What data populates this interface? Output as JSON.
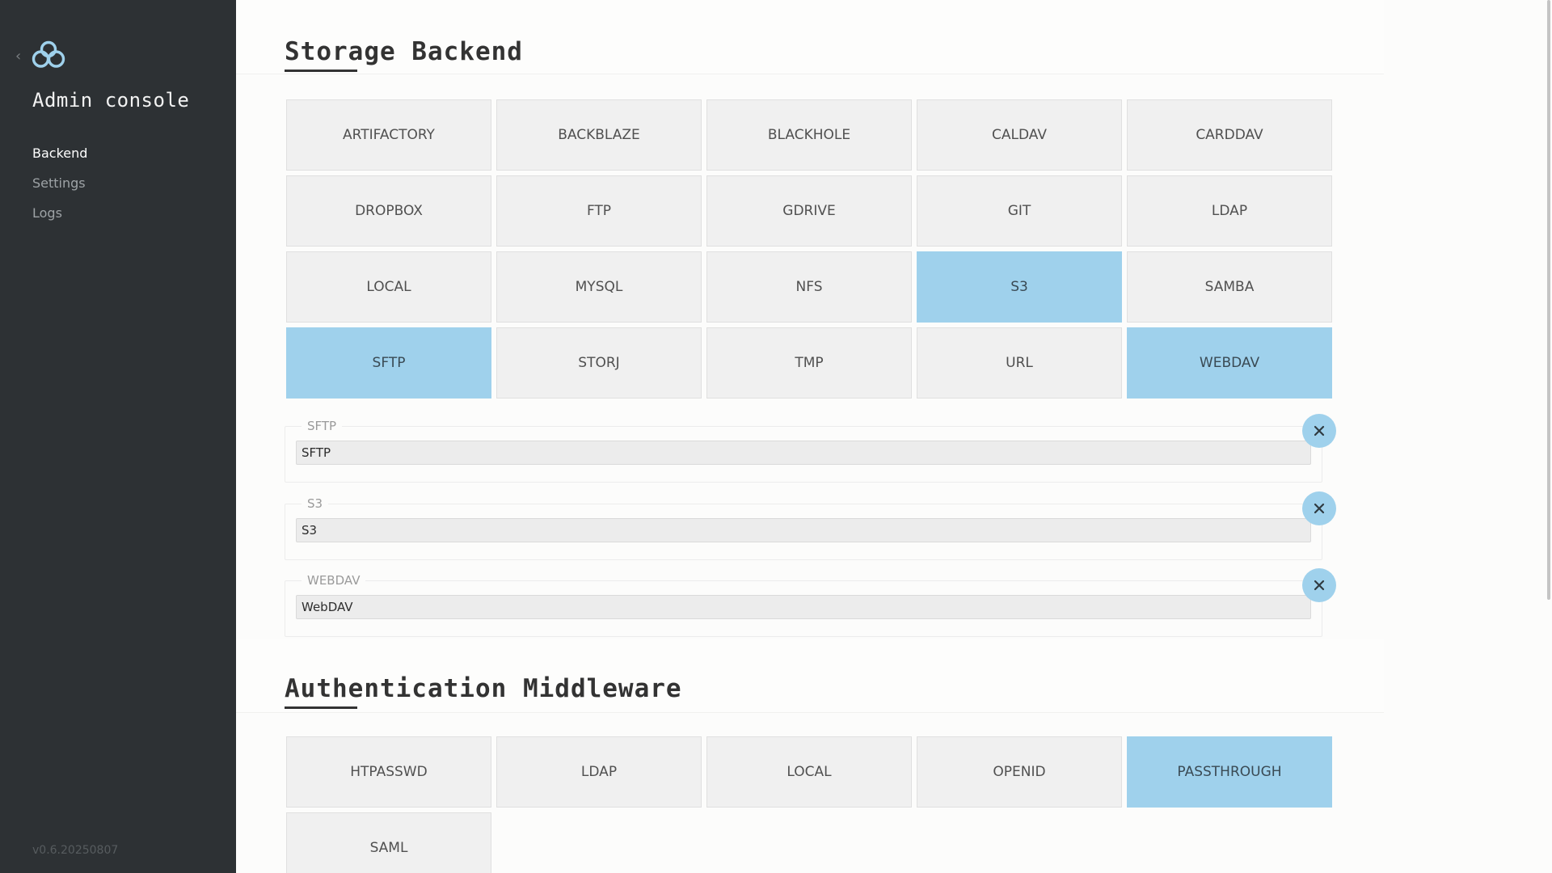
{
  "sidebar": {
    "title": "Admin console",
    "nav": [
      {
        "label": "Backend",
        "active": true
      },
      {
        "label": "Settings",
        "active": false
      },
      {
        "label": "Logs",
        "active": false
      }
    ],
    "version": "v0.6.20250807"
  },
  "storage": {
    "title": "Storage Backend",
    "tiles": [
      {
        "label": "ARTIFACTORY",
        "selected": false
      },
      {
        "label": "BACKBLAZE",
        "selected": false
      },
      {
        "label": "BLACKHOLE",
        "selected": false
      },
      {
        "label": "CALDAV",
        "selected": false
      },
      {
        "label": "CARDDAV",
        "selected": false
      },
      {
        "label": "DROPBOX",
        "selected": false
      },
      {
        "label": "FTP",
        "selected": false
      },
      {
        "label": "GDRIVE",
        "selected": false
      },
      {
        "label": "GIT",
        "selected": false
      },
      {
        "label": "LDAP",
        "selected": false
      },
      {
        "label": "LOCAL",
        "selected": false
      },
      {
        "label": "MYSQL",
        "selected": false
      },
      {
        "label": "NFS",
        "selected": false
      },
      {
        "label": "S3",
        "selected": true
      },
      {
        "label": "SAMBA",
        "selected": false
      },
      {
        "label": "SFTP",
        "selected": true
      },
      {
        "label": "STORJ",
        "selected": false
      },
      {
        "label": "TMP",
        "selected": false
      },
      {
        "label": "URL",
        "selected": false
      },
      {
        "label": "WEBDAV",
        "selected": true
      }
    ],
    "configs": [
      {
        "legend": "SFTP",
        "value": "SFTP"
      },
      {
        "legend": "S3",
        "value": "S3"
      },
      {
        "legend": "WEBDAV",
        "value": "WebDAV"
      }
    ]
  },
  "auth": {
    "title": "Authentication Middleware",
    "tiles": [
      {
        "label": "HTPASSWD",
        "selected": false
      },
      {
        "label": "LDAP",
        "selected": false
      },
      {
        "label": "LOCAL",
        "selected": false
      },
      {
        "label": "OPENID",
        "selected": false
      },
      {
        "label": "PASSTHROUGH",
        "selected": true
      },
      {
        "label": "SAML",
        "selected": false
      }
    ]
  },
  "colors": {
    "sidebar_bg": "#2d3134",
    "selected_tile": "#9fd1ec",
    "tile_bg": "#f0f0f0",
    "logo_stroke": "#9fd1ec"
  },
  "icons": {
    "logo": "cloud-icon",
    "back": "chevron-left-icon",
    "remove": "close-icon"
  }
}
